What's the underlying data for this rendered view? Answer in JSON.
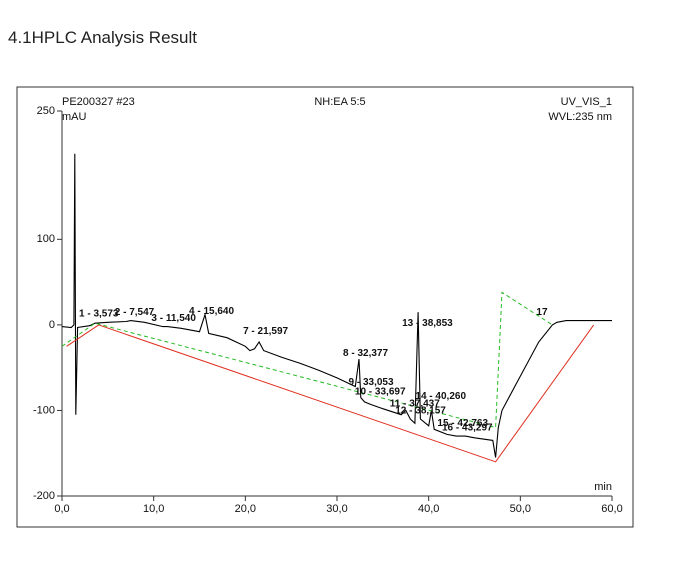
{
  "heading": "4.1HPLC Analysis Result",
  "chart_data": {
    "type": "line",
    "header_left": "PE200327 #23",
    "header_center": "NH:EA 5:5",
    "header_right": "UV_VIS_1",
    "y_label": "mAU",
    "wavelength": "WVL:235 nm",
    "x_label": "min",
    "xlim": [
      0,
      60
    ],
    "ylim": [
      -200,
      250
    ],
    "xticks": [
      {
        "value": 0,
        "label": "0,0"
      },
      {
        "value": 10,
        "label": "10,0"
      },
      {
        "value": 20,
        "label": "20,0"
      },
      {
        "value": 30,
        "label": "30,0"
      },
      {
        "value": 40,
        "label": "40,0"
      },
      {
        "value": 50,
        "label": "50,0"
      },
      {
        "value": 60,
        "label": "60,0"
      }
    ],
    "yticks": [
      -200,
      -100,
      0,
      100,
      250
    ],
    "series": [
      {
        "color": "#000000",
        "x": [
          0,
          1,
          1.3,
          1.4,
          1.5,
          1.7,
          3,
          3.6,
          5,
          7,
          7.5,
          9,
          11,
          11.5,
          13,
          15,
          15.6,
          16,
          18,
          20,
          20.5,
          21,
          21.5,
          22,
          24,
          26,
          28,
          30,
          32,
          32.4,
          32.6,
          33,
          33.7,
          35,
          37,
          37.5,
          38,
          38.5,
          38.85,
          39.1,
          40,
          40.3,
          40.6,
          42,
          43,
          44,
          45,
          47,
          47.3,
          47.6,
          48,
          50,
          52,
          53.5,
          54,
          55,
          57,
          60
        ],
        "values": [
          -2,
          -3,
          0,
          200,
          -105,
          -3,
          -1,
          2,
          3,
          4,
          5,
          3,
          -2,
          -2,
          -4,
          -8,
          12,
          -10,
          -15,
          -25,
          -30,
          -28,
          -20,
          -30,
          -38,
          -45,
          -53,
          -62,
          -72,
          -40,
          -85,
          -90,
          -93,
          -98,
          -105,
          -100,
          -110,
          -115,
          15,
          -110,
          -118,
          -100,
          -122,
          -128,
          -130,
          -130,
          -132,
          -135,
          -155,
          -120,
          -100,
          -60,
          -20,
          0,
          3,
          5,
          5,
          5
        ]
      },
      {
        "color": "#e03020",
        "x": [
          0.5,
          4,
          47.3,
          58
        ],
        "values": [
          -25,
          0,
          -160,
          0
        ]
      },
      {
        "color": "#22bb22",
        "dash": true,
        "x": [
          0,
          3.6,
          47.3,
          48,
          53.5
        ],
        "values": [
          -25,
          2,
          -120,
          38,
          0
        ]
      }
    ],
    "annotations": [
      {
        "text": "1 - 3,573",
        "x": 3.6,
        "y": 8
      },
      {
        "text": "2 - 7,547",
        "x": 7.5,
        "y": 10
      },
      {
        "text": "3 - 11,540",
        "x": 11.5,
        "y": 3
      },
      {
        "text": "4 - 15,640",
        "x": 15.6,
        "y": 11
      },
      {
        "text": "7 - 21,597",
        "x": 21.5,
        "y": -12
      },
      {
        "text": "8 - 32,377",
        "x": 32.4,
        "y": -38
      },
      {
        "text": "9 - 33,053",
        "x": 33,
        "y": -72
      },
      {
        "text": "10 - 33,697",
        "x": 33.7,
        "y": -83
      },
      {
        "text": "11 - 37,437",
        "x": 37.5,
        "y": -97
      },
      {
        "text": "12 - 38,157",
        "x": 38.1,
        "y": -105
      },
      {
        "text": "13 - 38,853",
        "x": 38.85,
        "y": -3
      },
      {
        "text": "14 - 40,260",
        "x": 40.3,
        "y": -88
      },
      {
        "text": "15 - 42,763",
        "x": 42.7,
        "y": -120
      },
      {
        "text": "16 - 43,297",
        "x": 43.2,
        "y": -125
      },
      {
        "text": "17",
        "x": 53.5,
        "y": 10
      }
    ]
  }
}
